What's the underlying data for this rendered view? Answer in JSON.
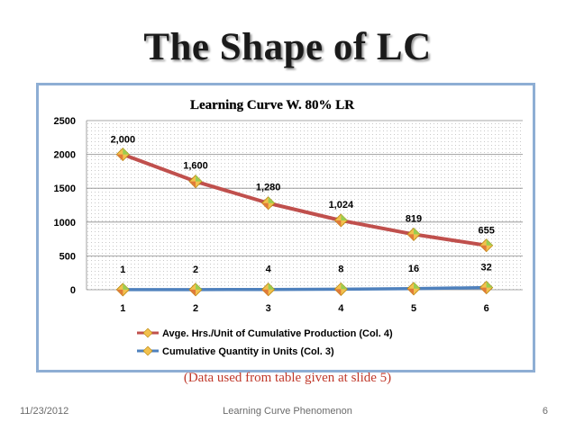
{
  "slide": {
    "title": "The Shape of LC",
    "footer_date": "11/23/2012",
    "footer_center": "Learning Curve Phenomenon",
    "page_number": "6",
    "note": "(Data used from table given at slide 5)"
  },
  "chart_data": {
    "type": "line",
    "title": "Learning Curve W. 80% LR",
    "categories": [
      "1",
      "2",
      "3",
      "4",
      "5",
      "6"
    ],
    "ylim": [
      0,
      2500
    ],
    "yticks": [
      "0",
      "500",
      "1000",
      "1500",
      "2000",
      "2500"
    ],
    "grid": true,
    "legend_position": "bottom",
    "series": [
      {
        "name": "Avge. Hrs./Unit of Cumulative Production (Col. 4)",
        "values": [
          2000,
          1600,
          1280,
          1024,
          819,
          655
        ],
        "labels": [
          "2,000",
          "1,600",
          "1,280",
          "1,024",
          "819",
          "655"
        ],
        "color": "#c0504d"
      },
      {
        "name": "Cumulative Quantity in Units (Col. 3)",
        "values": [
          1,
          2,
          4,
          8,
          16,
          32
        ],
        "labels": [
          "1",
          "2",
          "4",
          "8",
          "16",
          "32"
        ],
        "color": "#4f81bd"
      }
    ]
  }
}
